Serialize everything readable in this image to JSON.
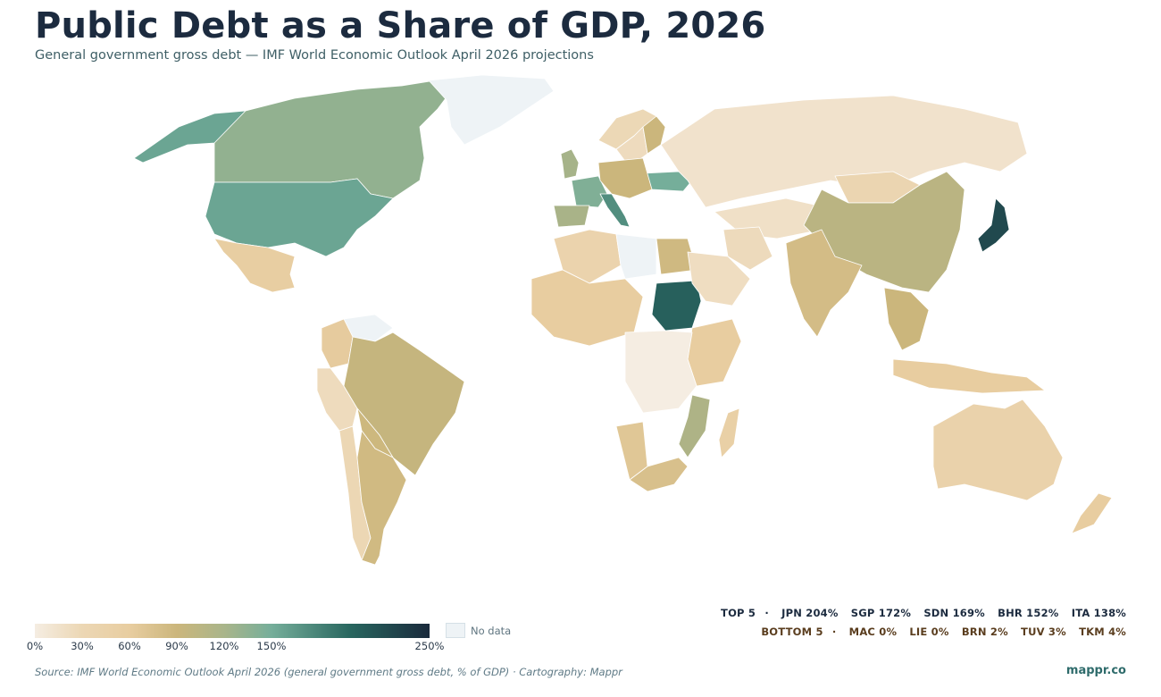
{
  "header": {
    "title": "Public Debt as a Share of GDP, 2026",
    "subtitle": "General government gross debt — IMF World Economic Outlook April 2026 projections"
  },
  "map": {
    "palette": {
      "no_data": "#eef3f6",
      "low": "#f5ede2",
      "mid_low": "#e8cda0",
      "mid": "#cbb67c",
      "mid_high": "#75ae9a",
      "high": "#28665f",
      "max": "#1a2a3c"
    },
    "regions": [
      {
        "code": "CAN",
        "value": 110
      },
      {
        "code": "USA",
        "value": 125
      },
      {
        "code": "GRL",
        "value": null
      },
      {
        "code": "MEX",
        "value": 58
      },
      {
        "code": "ALK",
        "value": 125
      },
      {
        "code": "BRA",
        "value": 92
      },
      {
        "code": "ARG",
        "value": 85
      },
      {
        "code": "CHL",
        "value": 42
      },
      {
        "code": "PER",
        "value": 34
      },
      {
        "code": "COL",
        "value": 62
      },
      {
        "code": "VEN",
        "value": null
      },
      {
        "code": "BOL",
        "value": 88
      },
      {
        "code": "RUS",
        "value": 20
      },
      {
        "code": "CHN",
        "value": 96
      },
      {
        "code": "IND",
        "value": 82
      },
      {
        "code": "JPN",
        "value": 204
      },
      {
        "code": "AUS",
        "value": 50
      },
      {
        "code": "SDN",
        "value": 169
      },
      {
        "code": "EGY",
        "value": 86
      },
      {
        "code": "DZA",
        "value": 48
      },
      {
        "code": "LBY",
        "value": null
      },
      {
        "code": "ZAF",
        "value": 77
      },
      {
        "code": "NAM",
        "value": 68
      },
      {
        "code": "MDG",
        "value": 55
      },
      {
        "code": "MOZ",
        "value": 100
      },
      {
        "code": "KAZ",
        "value": 25
      },
      {
        "code": "MNG",
        "value": 45
      },
      {
        "code": "IRN",
        "value": 35
      },
      {
        "code": "SAU",
        "value": 30
      },
      {
        "code": "ITA",
        "value": 138
      },
      {
        "code": "FRA",
        "value": 116
      },
      {
        "code": "ESP",
        "value": 102
      },
      {
        "code": "GBR",
        "value": 103
      },
      {
        "code": "UKR",
        "value": 120
      },
      {
        "code": "FIN",
        "value": 90
      },
      {
        "code": "SWE",
        "value": 33
      },
      {
        "code": "NOR",
        "value": 40
      }
    ]
  },
  "legend": {
    "ticks": [
      "0%",
      "30%",
      "60%",
      "90%",
      "120%",
      "150%",
      "250%"
    ],
    "no_data_label": "No data",
    "range": [
      0,
      250
    ]
  },
  "rankings": {
    "top_label": "TOP 5",
    "bottom_label": "BOTTOM 5",
    "separator": "·",
    "top": [
      "JPN 204%",
      "SGP 172%",
      "SDN 169%",
      "BHR 152%",
      "ITA 138%"
    ],
    "bottom": [
      "MAC 0%",
      "LIE 0%",
      "BRN 2%",
      "TUV 3%",
      "TKM 4%"
    ]
  },
  "footer": {
    "source": "Source: IMF World Economic Outlook April 2026 (general government gross debt, % of GDP) · Cartography: Mappr",
    "brand": "mappr.co"
  }
}
